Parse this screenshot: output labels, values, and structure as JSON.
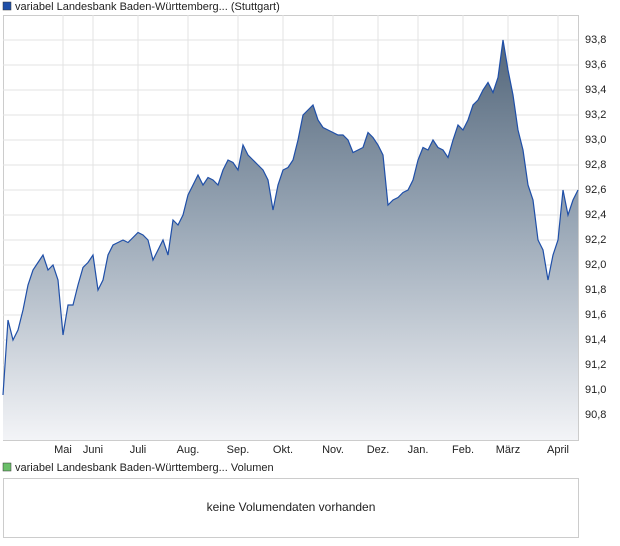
{
  "chart_data": {
    "type": "area",
    "series": [
      {
        "name": "variabel Landesbank Baden-Württemberg... (Stuttgart)",
        "color": "#1f4fa8",
        "values": [
          90.96,
          91.56,
          91.4,
          91.48,
          91.64,
          91.84,
          91.96,
          92.02,
          92.08,
          91.96,
          92.0,
          91.88,
          91.44,
          91.68,
          91.68,
          91.84,
          91.98,
          92.02,
          92.08,
          91.8,
          91.88,
          92.08,
          92.16,
          92.18,
          92.2,
          92.18,
          92.22,
          92.26,
          92.24,
          92.2,
          92.04,
          92.12,
          92.2,
          92.08,
          92.36,
          92.32,
          92.4,
          92.56,
          92.64,
          92.72,
          92.64,
          92.7,
          92.68,
          92.64,
          92.76,
          92.84,
          92.82,
          92.76,
          92.96,
          92.88,
          92.84,
          92.8,
          92.76,
          92.68,
          92.44,
          92.64,
          92.76,
          92.78,
          92.84,
          93.0,
          93.2,
          93.24,
          93.28,
          93.16,
          93.1,
          93.08,
          93.06,
          93.04,
          93.04,
          93.0,
          92.9,
          92.92,
          92.94,
          93.06,
          93.02,
          92.96,
          92.88,
          92.48,
          92.52,
          92.54,
          92.58,
          92.6,
          92.68,
          92.84,
          92.94,
          92.92,
          93.0,
          92.94,
          92.92,
          92.86,
          93.0,
          93.12,
          93.08,
          93.16,
          93.28,
          93.32,
          93.4,
          93.46,
          93.38,
          93.5,
          93.8,
          93.56,
          93.36,
          93.08,
          92.92,
          92.64,
          92.52,
          92.2,
          92.12,
          91.88,
          92.08,
          92.2,
          92.6,
          92.4,
          92.52,
          92.6
        ]
      }
    ],
    "xlim": [
      0,
      115
    ],
    "xticks": [
      {
        "value": 12,
        "label": "Mai"
      },
      {
        "value": 18,
        "label": "Juni"
      },
      {
        "value": 27,
        "label": "Juli"
      },
      {
        "value": 37,
        "label": "Aug."
      },
      {
        "value": 47,
        "label": "Sep."
      },
      {
        "value": 56,
        "label": "Okt."
      },
      {
        "value": 66,
        "label": "Nov."
      },
      {
        "value": 75,
        "label": "Dez."
      },
      {
        "value": 83,
        "label": "Jan."
      },
      {
        "value": 92,
        "label": "Feb."
      },
      {
        "value": 101,
        "label": "März"
      },
      {
        "value": 111,
        "label": "April"
      }
    ],
    "ylim": [
      90.6,
      94.0
    ],
    "yticks": [
      {
        "value": 90.8,
        "label": "90,8"
      },
      {
        "value": 91.0,
        "label": "91,0"
      },
      {
        "value": 91.2,
        "label": "91,2"
      },
      {
        "value": 91.4,
        "label": "91,4"
      },
      {
        "value": 91.6,
        "label": "91,6"
      },
      {
        "value": 91.8,
        "label": "91,8"
      },
      {
        "value": 92.0,
        "label": "92,0"
      },
      {
        "value": 92.2,
        "label": "92,2"
      },
      {
        "value": 92.4,
        "label": "92,4"
      },
      {
        "value": 92.6,
        "label": "92,6"
      },
      {
        "value": 92.8,
        "label": "92,8"
      },
      {
        "value": 93.0,
        "label": "93,0"
      },
      {
        "value": 93.2,
        "label": "93,2"
      },
      {
        "value": 93.4,
        "label": "93,4"
      },
      {
        "value": 93.6,
        "label": "93,6"
      },
      {
        "value": 93.8,
        "label": "93,8"
      }
    ],
    "grid": true
  },
  "volume_panel": {
    "legend": {
      "name": "variabel Landesbank Baden-Württemberg... Volumen",
      "color": "#6abf69"
    },
    "message": "keine Volumendaten vorhanden"
  }
}
